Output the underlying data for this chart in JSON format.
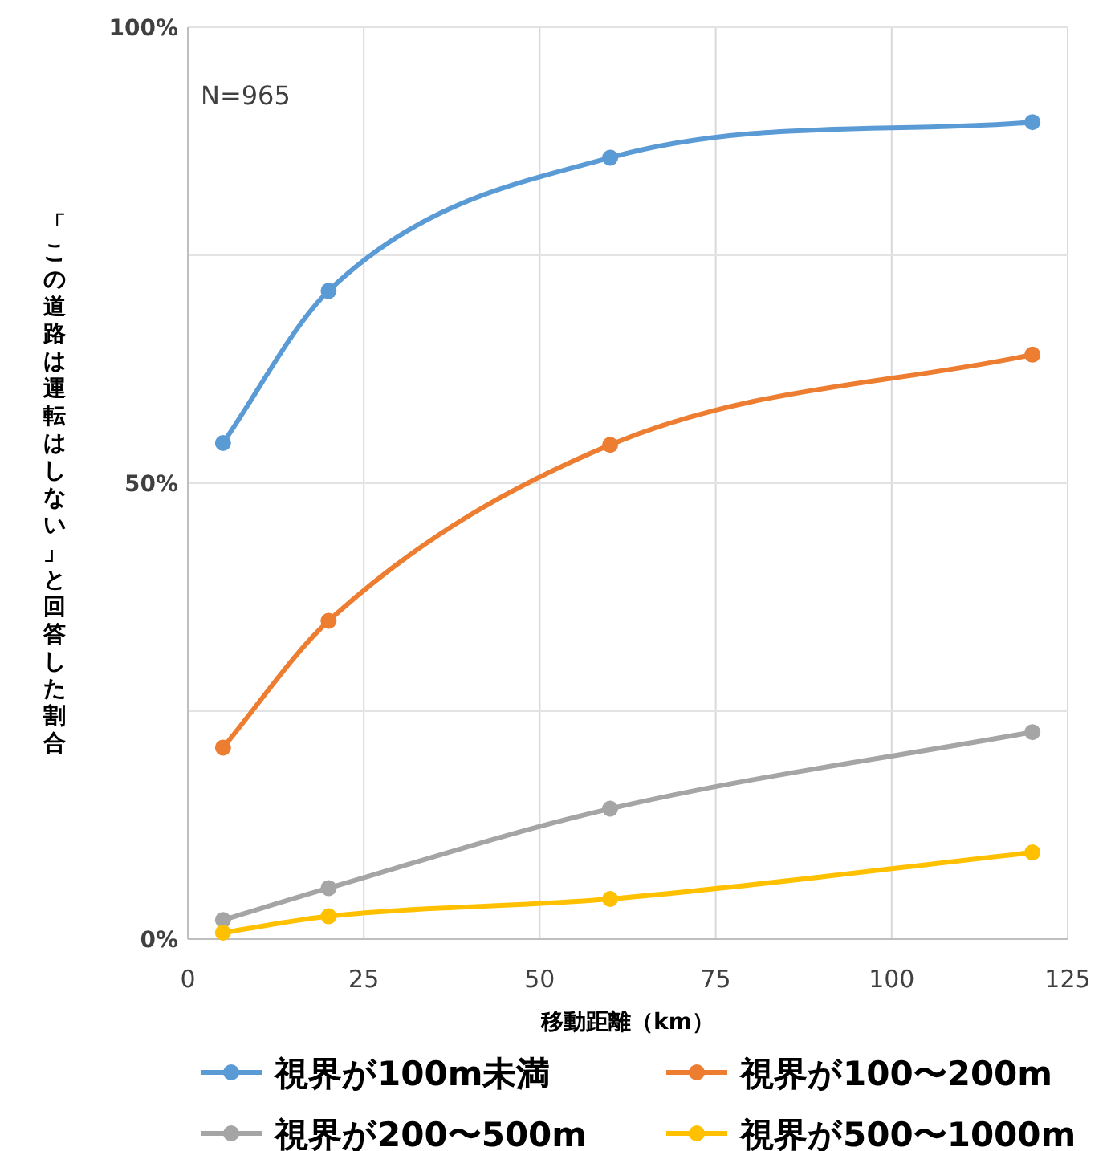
{
  "chart_data": {
    "type": "line",
    "xlabel": "移動距離（km）",
    "ylabel": "「この道路は運転はしない」と回答した割合",
    "annotations": [
      "N=965"
    ],
    "x": [
      5,
      20,
      60,
      120
    ],
    "xlim": [
      0,
      125
    ],
    "xticks": [
      0,
      25,
      50,
      75,
      100,
      125
    ],
    "ylim": [
      0,
      100
    ],
    "yticks": [
      {
        "value": 0,
        "label": "0%"
      },
      {
        "value": 25,
        "label": null
      },
      {
        "value": 50,
        "label": "50%"
      },
      {
        "value": 75,
        "label": null
      },
      {
        "value": 100,
        "label": "100%"
      }
    ],
    "grid": true,
    "legend": "bottom",
    "marker": "circle",
    "line_style": "solid",
    "series": [
      {
        "name": "視界が100m未満",
        "color": "#5b9bd5",
        "values": [
          54.4,
          71.1,
          85.7,
          89.6
        ]
      },
      {
        "name": "視界が100〜200m",
        "color": "#ed7d31",
        "values": [
          21.0,
          34.9,
          54.2,
          64.1
        ]
      },
      {
        "name": "視界が200〜500m",
        "color": "#a5a5a5",
        "values": [
          2.1,
          5.6,
          14.3,
          22.7
        ]
      },
      {
        "name": "視界が500〜1000m",
        "color": "#ffc000",
        "values": [
          0.7,
          2.5,
          4.4,
          9.5
        ]
      }
    ]
  }
}
